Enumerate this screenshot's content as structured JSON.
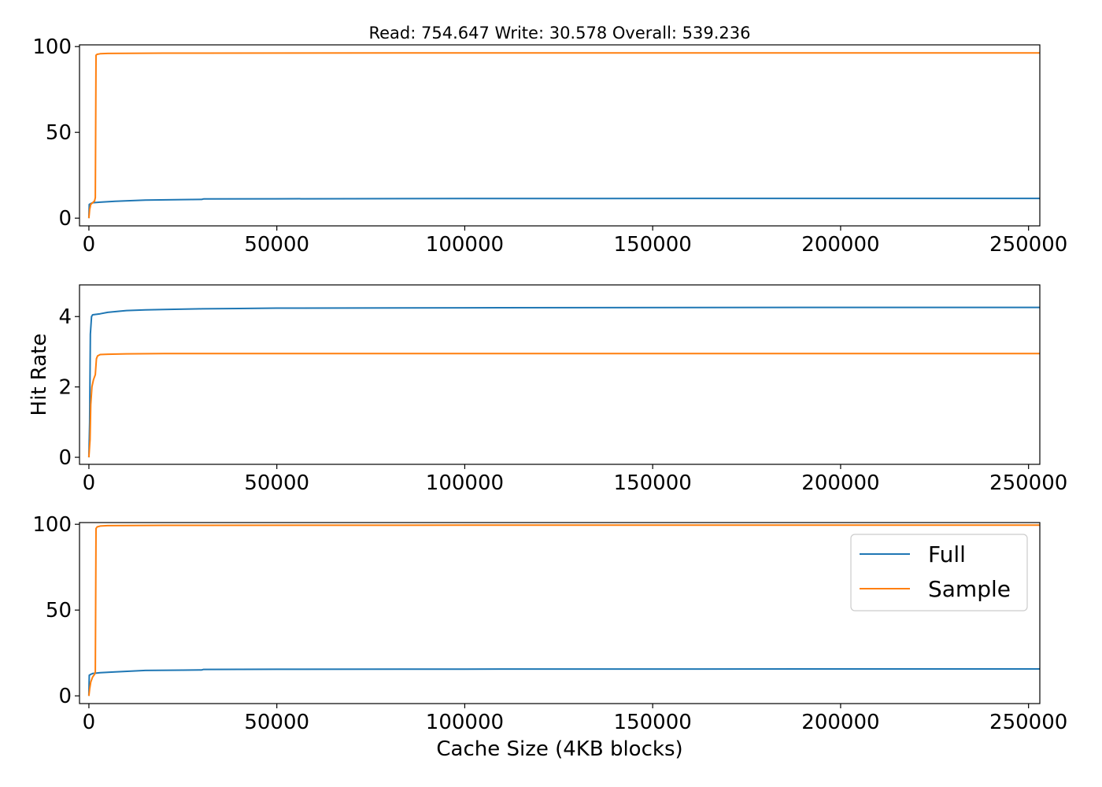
{
  "chart_data": {
    "title": "Read: 754.647 Write: 30.578 Overall: 539.236",
    "xlabel": "Cache Size (4KB blocks)",
    "colors": {
      "Full": "#1f77b4",
      "Sample": "#ff7f0e"
    },
    "legend": {
      "location": "upper-right of bottom panel",
      "entries": [
        "Full",
        "Sample"
      ]
    },
    "grid": false,
    "panels": [
      {
        "type": "line",
        "ylabel": "",
        "xlim": [
          -2500,
          253000
        ],
        "ylim": [
          -4.5,
          101
        ],
        "xticks": [
          0,
          50000,
          100000,
          150000,
          200000,
          250000
        ],
        "xtick_labels": [
          "0",
          "50000",
          "100000",
          "150000",
          "200000",
          "250000"
        ],
        "yticks": [
          0,
          50,
          100
        ],
        "ytick_labels": [
          "0",
          "50",
          "100"
        ],
        "series": [
          {
            "name": "Full",
            "x": [
              0,
              100,
              500,
              1000,
              3000,
              7000,
              15000,
              25000,
              30000,
              30500,
              50000,
              100000,
              200000,
              253000
            ],
            "y": [
              0,
              8,
              8.5,
              9,
              9.3,
              9.8,
              10.5,
              10.8,
              10.9,
              11.2,
              11.3,
              11.4,
              11.5,
              11.5
            ]
          },
          {
            "name": "Sample",
            "x": [
              0,
              200,
              500,
              1000,
              1500,
              1700,
              1900,
              2200,
              3000,
              5000,
              20000,
              100000,
              253000
            ],
            "y": [
              0,
              5,
              8,
              9,
              10,
              12,
              95,
              95.5,
              95.8,
              96,
              96.2,
              96.3,
              96.3
            ]
          }
        ]
      },
      {
        "type": "line",
        "ylabel": "Hit Rate",
        "xlim": [
          -2500,
          253000
        ],
        "ylim": [
          -0.2,
          4.9
        ],
        "xticks": [
          0,
          50000,
          100000,
          150000,
          200000,
          250000
        ],
        "xtick_labels": [
          "0",
          "50000",
          "100000",
          "150000",
          "200000",
          "250000"
        ],
        "yticks": [
          0,
          2,
          4
        ],
        "ytick_labels": [
          "0",
          "2",
          "4"
        ],
        "series": [
          {
            "name": "Full",
            "x": [
              0,
              200,
              400,
              700,
              1000,
              3000,
              5000,
              8000,
              10000,
              15000,
              20000,
              30000,
              40000,
              50000,
              100000,
              200000,
              253000
            ],
            "y": [
              0,
              1.0,
              3.5,
              4.0,
              4.05,
              4.08,
              4.12,
              4.15,
              4.17,
              4.19,
              4.2,
              4.22,
              4.23,
              4.24,
              4.25,
              4.26,
              4.26
            ]
          },
          {
            "name": "Sample",
            "x": [
              0,
              300,
              500,
              800,
              1200,
              1700,
              2000,
              2300,
              3000,
              5000,
              10000,
              20000,
              253000
            ],
            "y": [
              0,
              0.5,
              1.5,
              2.0,
              2.2,
              2.35,
              2.8,
              2.88,
              2.92,
              2.93,
              2.94,
              2.95,
              2.95
            ]
          }
        ]
      },
      {
        "type": "line",
        "ylabel": "",
        "xlim": [
          -2500,
          253000
        ],
        "ylim": [
          -4.5,
          101
        ],
        "xticks": [
          0,
          50000,
          100000,
          150000,
          200000,
          250000
        ],
        "xtick_labels": [
          "0",
          "50000",
          "100000",
          "150000",
          "200000",
          "250000"
        ],
        "yticks": [
          0,
          50,
          100
        ],
        "ytick_labels": [
          "0",
          "50",
          "100"
        ],
        "series": [
          {
            "name": "Full",
            "x": [
              0,
              100,
              500,
              1000,
              3000,
              7000,
              15000,
              25000,
              30000,
              30500,
              50000,
              100000,
              200000,
              253000
            ],
            "y": [
              0,
              12,
              12.5,
              13,
              13.5,
              14,
              14.8,
              15,
              15.1,
              15.4,
              15.5,
              15.6,
              15.7,
              15.7
            ]
          },
          {
            "name": "Sample",
            "x": [
              0,
              200,
              500,
              1000,
              1500,
              1700,
              1900,
              2200,
              3000,
              5000,
              20000,
              100000,
              253000
            ],
            "y": [
              0,
              4,
              8,
              11,
              12.5,
              14,
              97.5,
              98.5,
              99,
              99.2,
              99.4,
              99.5,
              99.5
            ]
          }
        ]
      }
    ]
  }
}
